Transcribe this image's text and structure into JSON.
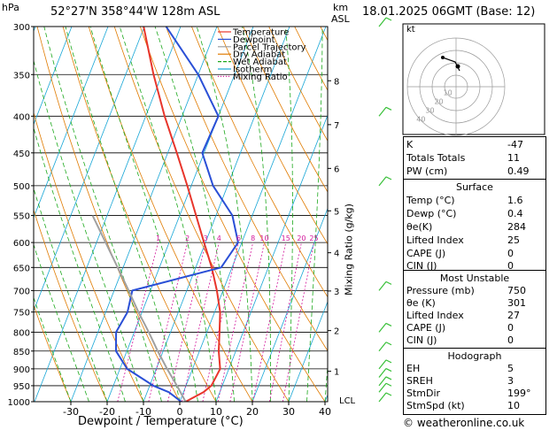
{
  "header": {
    "location": "52°27'N  358°44'W  128m  ASL",
    "datetime": "18.01.2025  06GMT  (Base: 12)",
    "unit_hpa": "hPa",
    "unit_km": "km",
    "unit_asl": "ASL"
  },
  "footer": {
    "xlabel": "Dewpoint / Temperature (°C)",
    "copyright": "© weatheronline.co.uk"
  },
  "mixing_ratio_label": "Mixing Ratio (g/kg)",
  "hodograph": {
    "label": "kt",
    "ring_labels": [
      "10",
      "20",
      "30",
      "40"
    ]
  },
  "indices": [
    {
      "label": "K",
      "value": "-47"
    },
    {
      "label": "Totals Totals",
      "value": "11"
    },
    {
      "label": "PW (cm)",
      "value": "0.49"
    }
  ],
  "surface": {
    "title": "Surface",
    "rows": [
      {
        "label": "Temp (°C)",
        "value": "1.6"
      },
      {
        "label": "Dewp (°C)",
        "value": "0.4"
      },
      {
        "label": "θe(K)",
        "value": "284"
      },
      {
        "label": "Lifted Index",
        "value": "25"
      },
      {
        "label": "CAPE (J)",
        "value": "0"
      },
      {
        "label": "CIN (J)",
        "value": "0"
      }
    ]
  },
  "most_unstable": {
    "title": "Most Unstable",
    "rows": [
      {
        "label": "Pressure (mb)",
        "value": "750"
      },
      {
        "label": "θe (K)",
        "value": "301"
      },
      {
        "label": "Lifted Index",
        "value": "27"
      },
      {
        "label": "CAPE (J)",
        "value": "0"
      },
      {
        "label": "CIN (J)",
        "value": "0"
      }
    ]
  },
  "hodograph_table": {
    "title": "Hodograph",
    "rows": [
      {
        "label": "EH",
        "value": "5"
      },
      {
        "label": "SREH",
        "value": "3"
      },
      {
        "label": "StmDir",
        "value": "199°"
      },
      {
        "label": "StmSpd (kt)",
        "value": "10"
      }
    ]
  },
  "colors": {
    "temperature": "#e8352b",
    "dewpoint": "#2a4fd6",
    "parcel": "#a0a0a0",
    "dry_adiabat": "#e07b00",
    "wet_adiabat": "#1ca81c",
    "isotherm": "#17a6d6",
    "mixing_ratio": "#d3179b",
    "wind_barb": "#38c038"
  },
  "chart_data": {
    "type": "line",
    "title": "",
    "xlabel": "Dewpoint / Temperature (°C)",
    "ylabel": "hPa",
    "xlim": [
      -35,
      40
    ],
    "ylim": [
      1000,
      300
    ],
    "pressure_levels": [
      300,
      350,
      400,
      450,
      500,
      550,
      600,
      650,
      700,
      750,
      800,
      850,
      900,
      950,
      1000
    ],
    "x_ticks": [
      -30,
      -20,
      -10,
      0,
      10,
      20,
      30,
      40
    ],
    "height_km_ticks": [
      {
        "label": "1",
        "pressure": 907
      },
      {
        "label": "2",
        "pressure": 796
      },
      {
        "label": "3",
        "pressure": 701
      },
      {
        "label": "4",
        "pressure": 620
      },
      {
        "label": "5",
        "pressure": 542
      },
      {
        "label": "6",
        "pressure": 473
      },
      {
        "label": "7",
        "pressure": 411
      },
      {
        "label": "8",
        "pressure": 357
      }
    ],
    "lcl_label": "LCL",
    "lcl_pressure": 1000,
    "mixing_ratio_labels": [
      "1",
      "2",
      "3",
      "4",
      "6",
      "8",
      "10",
      "15",
      "20",
      "25"
    ],
    "mixing_ratio_label_pressure": 600,
    "legend": [
      "Temperature",
      "Dewpoint",
      "Parcel Trajectory",
      "Dry Adiabat",
      "Wet Adiabat",
      "Isotherm",
      "Mixing Ratio"
    ],
    "legend_position": "top-left",
    "series": [
      {
        "name": "Temperature",
        "points": [
          [
            1000,
            1.6
          ],
          [
            970,
            5.5
          ],
          [
            950,
            7
          ],
          [
            900,
            7.6
          ],
          [
            850,
            5.3
          ],
          [
            800,
            3.5
          ],
          [
            750,
            1.5
          ],
          [
            700,
            -1.7
          ],
          [
            650,
            -5.6
          ],
          [
            600,
            -10.4
          ],
          [
            550,
            -15.5
          ],
          [
            500,
            -21.1
          ],
          [
            450,
            -27.5
          ],
          [
            400,
            -34.8
          ],
          [
            350,
            -42.3
          ],
          [
            300,
            -50.2
          ]
        ]
      },
      {
        "name": "Dewpoint",
        "points": [
          [
            1000,
            0.4
          ],
          [
            970,
            -4
          ],
          [
            950,
            -9
          ],
          [
            900,
            -18
          ],
          [
            850,
            -23
          ],
          [
            800,
            -25
          ],
          [
            750,
            -24
          ],
          [
            700,
            -25
          ],
          [
            650,
            -3
          ],
          [
            600,
            -1
          ],
          [
            550,
            -5.5
          ],
          [
            500,
            -14
          ],
          [
            450,
            -20.5
          ],
          [
            400,
            -20
          ],
          [
            350,
            -30
          ],
          [
            300,
            -44
          ]
        ]
      },
      {
        "name": "Parcel Trajectory",
        "points": [
          [
            1000,
            1.6
          ],
          [
            950,
            -2.5
          ],
          [
            900,
            -7
          ],
          [
            850,
            -11.5
          ],
          [
            800,
            -16
          ],
          [
            750,
            -21
          ],
          [
            700,
            -26
          ],
          [
            650,
            -31.5
          ],
          [
            600,
            -37.5
          ],
          [
            550,
            -44
          ]
        ]
      }
    ]
  }
}
